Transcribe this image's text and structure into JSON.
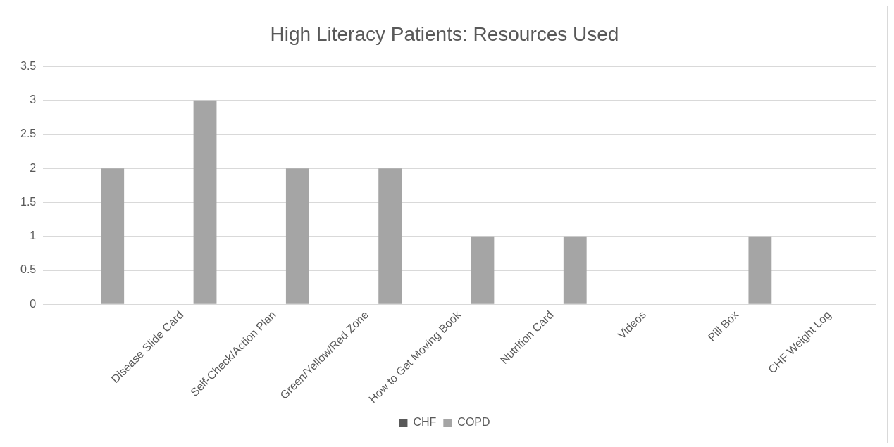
{
  "chart_data": {
    "type": "bar",
    "title": "High Literacy Patients: Resources Used",
    "categories": [
      null,
      "Disease Slide Card",
      "Self-Check/Action Plan",
      "Green/Yellow/Red Zone",
      "How to Get Moving Book",
      "Nutrition Card",
      "Videos",
      "Pill Box",
      "CHF Weight Log"
    ],
    "series": [
      {
        "name": "CHF",
        "color": "#595959",
        "values": [
          0,
          0,
          0,
          0,
          0,
          0,
          0,
          0,
          0
        ]
      },
      {
        "name": "COPD",
        "color": "#a5a5a5",
        "values": [
          2,
          3,
          2,
          2,
          1,
          1,
          0,
          1,
          0
        ]
      }
    ],
    "ylim": [
      0,
      3.5
    ],
    "yticks": [
      0,
      0.5,
      1,
      1.5,
      2,
      2.5,
      3,
      3.5
    ],
    "grid": "y",
    "legend": "bottom"
  }
}
